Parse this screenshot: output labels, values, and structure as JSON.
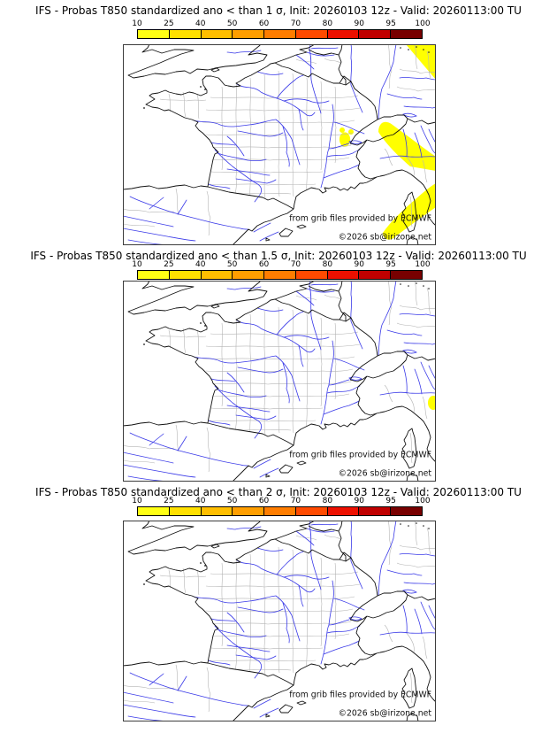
{
  "page": {
    "background": "#ffffff"
  },
  "colorbar": {
    "ticks": [
      "10",
      "25",
      "40",
      "50",
      "60",
      "70",
      "80",
      "90",
      "95",
      "100"
    ],
    "colors": [
      "#ffff14",
      "#ffe000",
      "#ffbe00",
      "#ff9e00",
      "#ff7d00",
      "#ff4a00",
      "#ed1000",
      "#c00000",
      "#780000"
    ]
  },
  "map": {
    "highlight_color": "#ffff00",
    "river_color": "#3a3ae8",
    "admin_color": "#b4b4b4",
    "coast_color": "#111111"
  },
  "credits": {
    "source": "from grib files provided by ECMWF",
    "copyright": "©2026 sb@irizone.net"
  },
  "panels": [
    {
      "title": "IFS - Probas T850  standardized ano < than 1 σ, Init: 20260103 12z - Valid: 20260113:00 TU",
      "model": "IFS",
      "field": "Probas T850",
      "threshold_sigma": "1",
      "init": "20260103 12z",
      "valid": "20260113:00 TU",
      "yellow_regions": [
        "top-right-corner",
        "nw-italy-band",
        "adriatic-band",
        "alps-spots"
      ]
    },
    {
      "title": "IFS - Probas T850  standardized ano < than 1.5 σ, Init: 20260103 12z - Valid: 20260113:00 TU",
      "model": "IFS",
      "field": "Probas T850",
      "threshold_sigma": "1.5",
      "init": "20260103 12z",
      "valid": "20260113:00 TU",
      "yellow_regions": [
        "adriatic-edge-spot"
      ]
    },
    {
      "title": "IFS - Probas T850  standardized ano < than 2 σ, Init: 20260103 12z - Valid: 20260113:00 TU",
      "model": "IFS",
      "field": "Probas T850",
      "threshold_sigma": "2",
      "init": "20260103 12z",
      "valid": "20260113:00 TU",
      "yellow_regions": []
    }
  ],
  "chart_data": {
    "type": "heatmap",
    "title": "IFS ensemble probability maps, T850 standardized anomaly below thresholds",
    "legend_entries": [
      "10",
      "25",
      "40",
      "50",
      "60",
      "70",
      "80",
      "90",
      "95",
      "100"
    ],
    "series": [
      {
        "name": "ano < 1 sigma",
        "values": "probability 10-25% patches over NW Italy / Ligurian-Adriatic area, NE map corner, small Alpine spots; elsewhere < 10%"
      },
      {
        "name": "ano < 1.5 sigma",
        "values": "single small 10-25% spot on Adriatic coast at right map edge; elsewhere < 10%"
      },
      {
        "name": "ano < 2 sigma",
        "values": "no area above 10%"
      }
    ],
    "x": [
      "longitude ~ -6E to 10.6E"
    ],
    "axis_ranges": "lat ~ 39.7N to 52.3N",
    "legend_position": "top"
  }
}
